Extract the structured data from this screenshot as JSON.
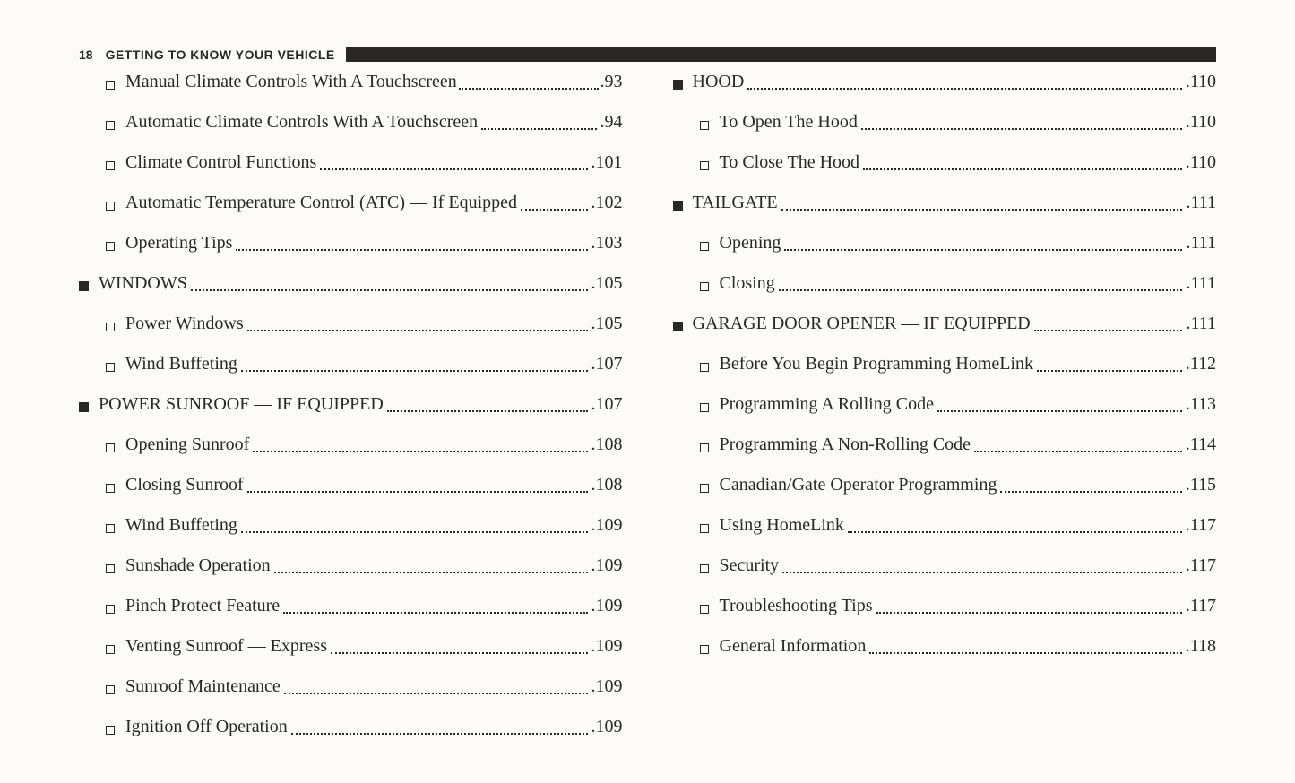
{
  "header": {
    "page_number": "18",
    "section_title": "GETTING TO KNOW YOUR VEHICLE"
  },
  "toc": [
    {
      "level": "sub",
      "label": "Manual Climate Controls With A Touchscreen",
      "page": "93",
      "leader": "tight"
    },
    {
      "level": "sub",
      "label": "Automatic Climate Controls With A Touchscreen",
      "page": "94"
    },
    {
      "level": "sub",
      "label": "Climate Control Functions",
      "page": "101"
    },
    {
      "level": "sub",
      "label": "Automatic Temperature Control (ATC) — If Equipped",
      "page": "102"
    },
    {
      "level": "sub",
      "label": "Operating Tips",
      "page": "103"
    },
    {
      "level": "heading",
      "label": "WINDOWS",
      "page": "105"
    },
    {
      "level": "sub",
      "label": "Power Windows",
      "page": "105"
    },
    {
      "level": "sub",
      "label": "Wind Buffeting",
      "page": "107"
    },
    {
      "level": "heading",
      "label": "POWER SUNROOF — IF EQUIPPED",
      "page": "107"
    },
    {
      "level": "sub",
      "label": "Opening Sunroof",
      "page": "108"
    },
    {
      "level": "sub",
      "label": "Closing Sunroof",
      "page": "108"
    },
    {
      "level": "sub",
      "label": "Wind Buffeting",
      "page": "109"
    },
    {
      "level": "sub",
      "label": "Sunshade Operation",
      "page": "109"
    },
    {
      "level": "sub",
      "label": "Pinch Protect Feature",
      "page": "109"
    },
    {
      "level": "sub",
      "label": "Venting Sunroof — Express",
      "page": "109"
    },
    {
      "level": "sub",
      "label": "Sunroof Maintenance",
      "page": "109"
    },
    {
      "level": "sub",
      "label": "Ignition Off Operation",
      "page": "109"
    },
    {
      "level": "heading",
      "label": "HOOD",
      "page": "110"
    },
    {
      "level": "sub",
      "label": "To Open The Hood",
      "page": "110"
    },
    {
      "level": "sub",
      "label": "To Close The Hood",
      "page": "110"
    },
    {
      "level": "heading",
      "label": "TAILGATE",
      "page": "111"
    },
    {
      "level": "sub",
      "label": "Opening",
      "page": "111"
    },
    {
      "level": "sub",
      "label": "Closing",
      "page": "111"
    },
    {
      "level": "heading",
      "label": "GARAGE DOOR OPENER — IF EQUIPPED",
      "page": "111"
    },
    {
      "level": "sub",
      "label": "Before You Begin Programming HomeLink",
      "page": "112"
    },
    {
      "level": "sub",
      "label": "Programming A Rolling Code",
      "page": "113"
    },
    {
      "level": "sub",
      "label": "Programming A Non-Rolling Code",
      "page": "114"
    },
    {
      "level": "sub",
      "label": "Canadian/Gate Operator Programming",
      "page": "115"
    },
    {
      "level": "sub",
      "label": "Using HomeLink",
      "page": "117"
    },
    {
      "level": "sub",
      "label": "Security",
      "page": "117"
    },
    {
      "level": "sub",
      "label": "Troubleshooting Tips",
      "page": "117"
    },
    {
      "level": "sub",
      "label": "General Information",
      "page": "118"
    }
  ]
}
